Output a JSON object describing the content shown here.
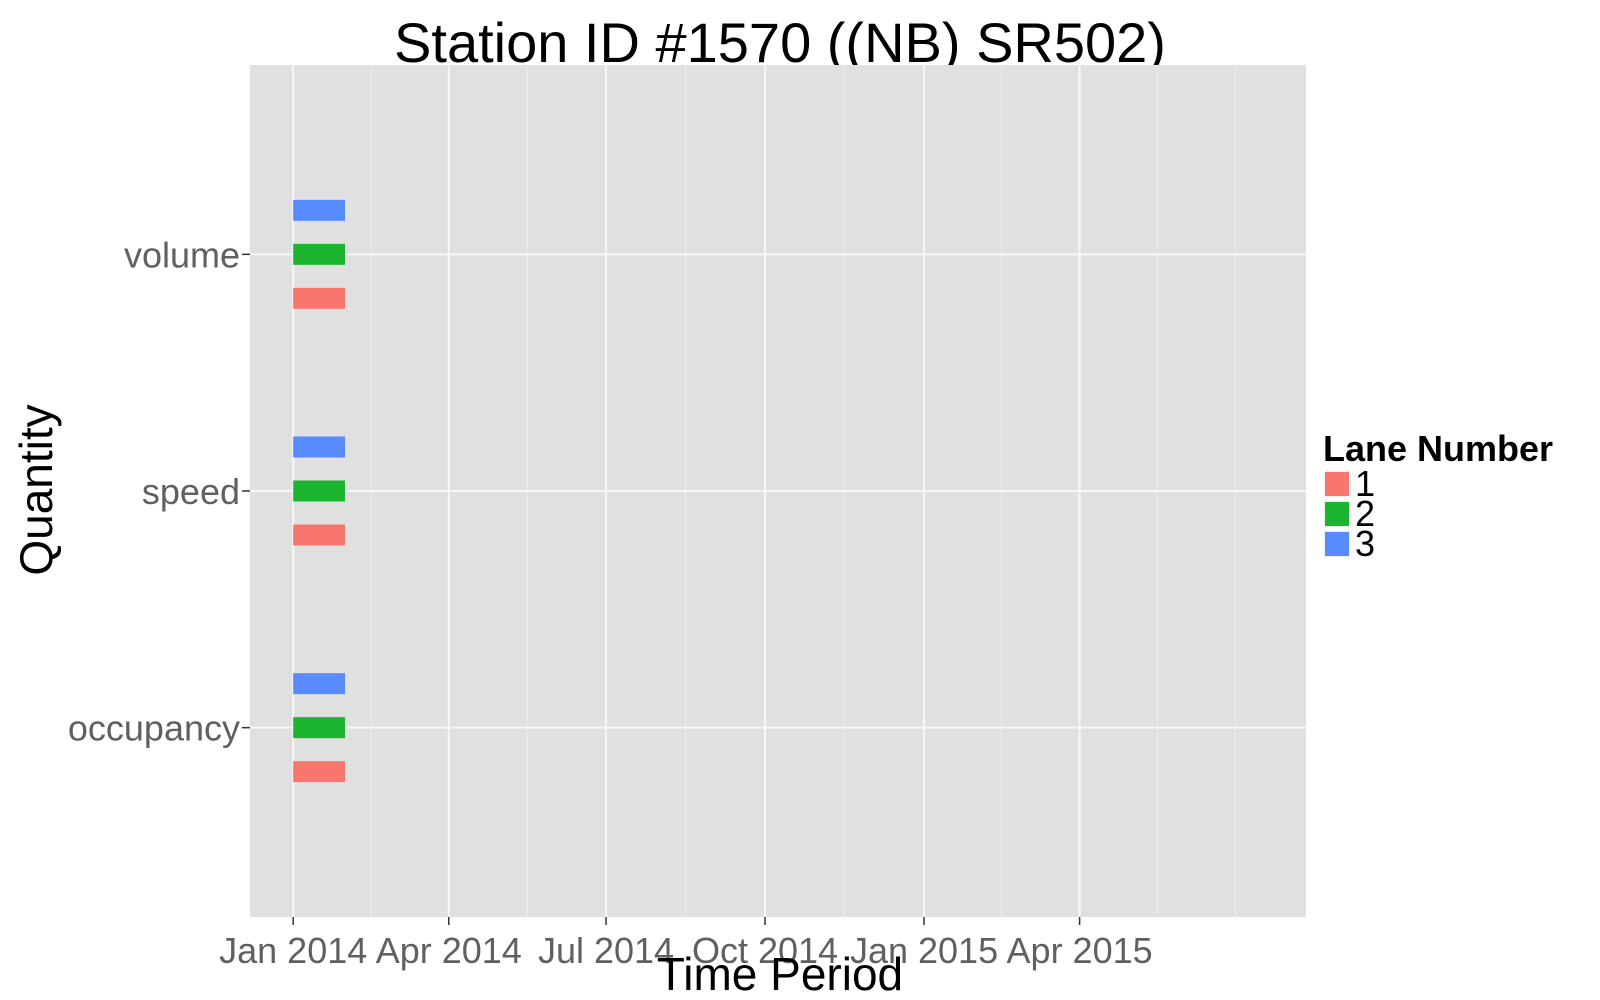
{
  "chart_data": {
    "type": "bar",
    "orientation": "horizontal-timeline",
    "title": "Station ID #1570 ((NB) SR502)",
    "xlabel": "Time Period",
    "ylabel": "Quantity",
    "x_ticks": [
      {
        "date": "2014-01-01",
        "label": "Jan 2014"
      },
      {
        "date": "2014-04-01",
        "label": "Apr 2014"
      },
      {
        "date": "2014-07-01",
        "label": "Jul 2014"
      },
      {
        "date": "2014-10-01",
        "label": "Oct 2014"
      },
      {
        "date": "2015-01-01",
        "label": "Jan 2015"
      },
      {
        "date": "2015-04-01",
        "label": "Apr 2015"
      }
    ],
    "xlim": [
      "2013-12-07",
      "2015-08-10"
    ],
    "categories": [
      "occupancy",
      "speed",
      "volume"
    ],
    "legend": {
      "title": "Lane Number",
      "position": "right"
    },
    "series": [
      {
        "name": "1",
        "color": "#F8766D",
        "segments": [
          {
            "category": "occupancy",
            "start": "2014-01-01",
            "end": "2014-01-31"
          },
          {
            "category": "speed",
            "start": "2014-01-01",
            "end": "2014-01-31"
          },
          {
            "category": "volume",
            "start": "2014-01-01",
            "end": "2014-01-31"
          }
        ]
      },
      {
        "name": "2",
        "color": "#1CB52F",
        "segments": [
          {
            "category": "occupancy",
            "start": "2014-01-01",
            "end": "2014-01-31"
          },
          {
            "category": "speed",
            "start": "2014-01-01",
            "end": "2014-01-31"
          },
          {
            "category": "volume",
            "start": "2014-01-01",
            "end": "2014-01-31"
          }
        ]
      },
      {
        "name": "3",
        "color": "#578BFF",
        "segments": [
          {
            "category": "occupancy",
            "start": "2014-01-01",
            "end": "2014-01-31"
          },
          {
            "category": "speed",
            "start": "2014-01-01",
            "end": "2014-01-31"
          },
          {
            "category": "volume",
            "start": "2014-01-01",
            "end": "2014-01-31"
          }
        ]
      }
    ],
    "grid": true,
    "panel_background": "#E0E0E0"
  }
}
